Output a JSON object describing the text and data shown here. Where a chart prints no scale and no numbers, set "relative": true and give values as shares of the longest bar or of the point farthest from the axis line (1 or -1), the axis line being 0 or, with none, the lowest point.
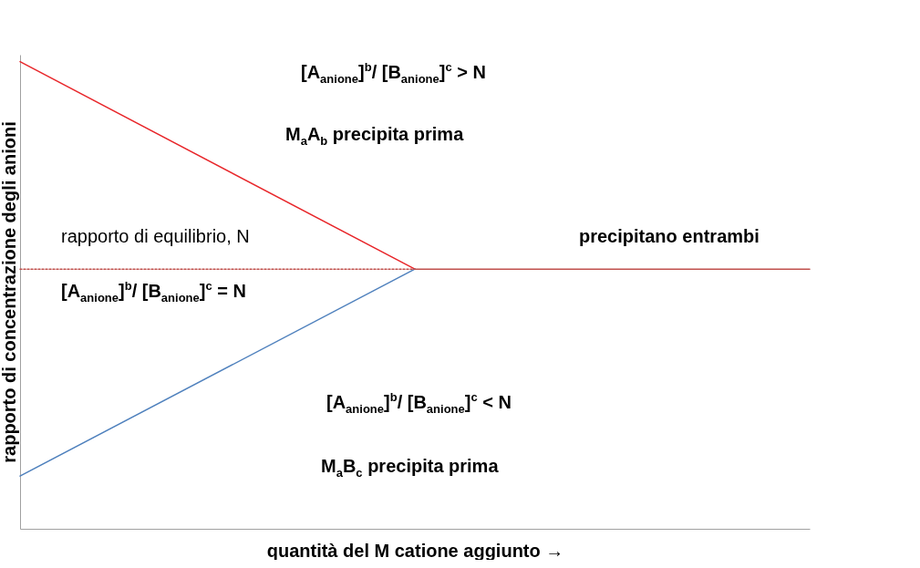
{
  "chart_data": {
    "type": "line",
    "relative": true,
    "xlabel": "quantità del M catione aggiunto →",
    "ylabel": "rapporto di concentrazione degli anioni",
    "categories": [
      null,
      null,
      null
    ],
    "series": [
      {
        "color": "#e8262a",
        "values": [
          1,
          0.556,
          null
        ]
      },
      {
        "color": "#4f81bd",
        "values": [
          0.113,
          0.556,
          null
        ]
      },
      {
        "color": "#c0504d",
        "values": [
          null,
          0.556,
          0.556
        ]
      },
      {
        "color": "#c0504d",
        "values": [
          0.556,
          0.556,
          null
        ],
        "line_style": "dotted"
      }
    ],
    "annotations": [
      "[A$_{anione}$]$^{b}$/ [B$_{anione}$]$^{c}$ > N",
      "M$_{a}$A$_{b}$ precipita prima",
      "rapporto di equilibrio, N",
      "[A$_{anione}$]$^{b}$/ [B$_{anione}$]$^{c}$ = N",
      "precipitano entrambi",
      "[A$_{anione}$]$^{b}$/ [B$_{anione}$]$^{c}$ < N",
      "M$_{a}$B$_{c}$ precipita prima"
    ],
    "grid": false,
    "marker": "none",
    "line_style": "solid"
  }
}
